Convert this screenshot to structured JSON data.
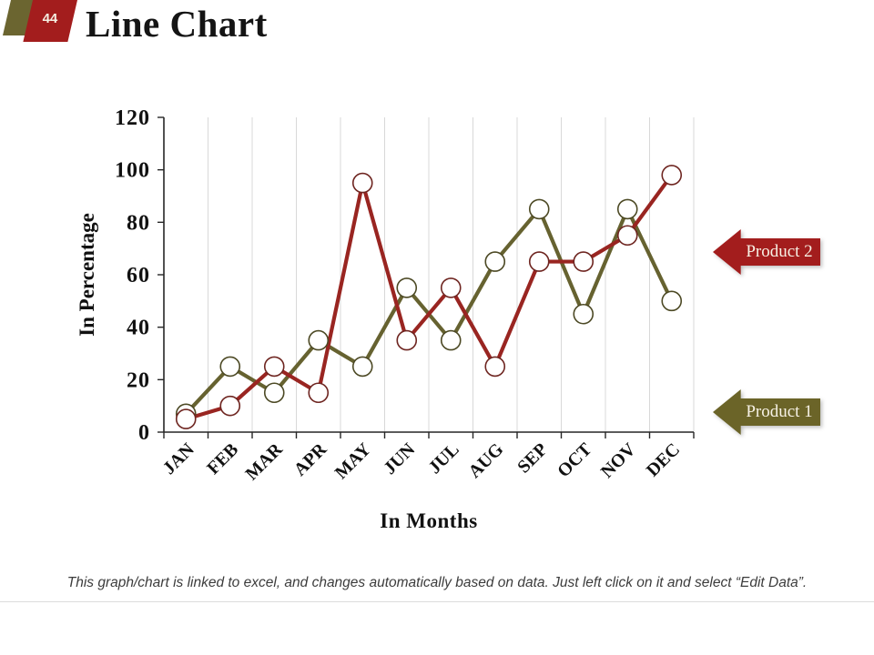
{
  "slide": {
    "number": "44",
    "title": "Line Chart",
    "footer": "This graph/chart is linked to excel, and changes automatically based on data. Just left click on it and select “Edit Data”."
  },
  "legend": [
    {
      "label": "Product 2",
      "color": "#A31D1D"
    },
    {
      "label": "Product 1",
      "color": "#6B6428"
    }
  ],
  "chart_data": {
    "type": "line",
    "title": "",
    "xlabel": "In Months",
    "ylabel": "In Percentage",
    "categories": [
      "JAN",
      "FEB",
      "MAR",
      "APR",
      "MAY",
      "JUN",
      "JUL",
      "AUG",
      "SEP",
      "OCT",
      "NOV",
      "DEC"
    ],
    "series": [
      {
        "name": "Product 1",
        "color": "#666230",
        "marker_stroke": "#4C4924",
        "values": [
          7,
          25,
          15,
          35,
          25,
          55,
          35,
          65,
          85,
          45,
          85,
          50
        ]
      },
      {
        "name": "Product 2",
        "color": "#992521",
        "marker_stroke": "#6E2520",
        "values": [
          5,
          10,
          25,
          15,
          95,
          35,
          55,
          25,
          65,
          65,
          75,
          98
        ]
      }
    ],
    "ylim": [
      0,
      120
    ],
    "ytick_step": 20,
    "yticks": [
      "0",
      "20",
      "40",
      "60",
      "80",
      "100",
      "120"
    ],
    "grid": "vertical",
    "marker": "open-circle",
    "legend_position": "right-arrows"
  },
  "colors": {
    "gridline": "#D8D8D8",
    "axis": "#262626",
    "marker_fill": "#FFFFFF"
  }
}
